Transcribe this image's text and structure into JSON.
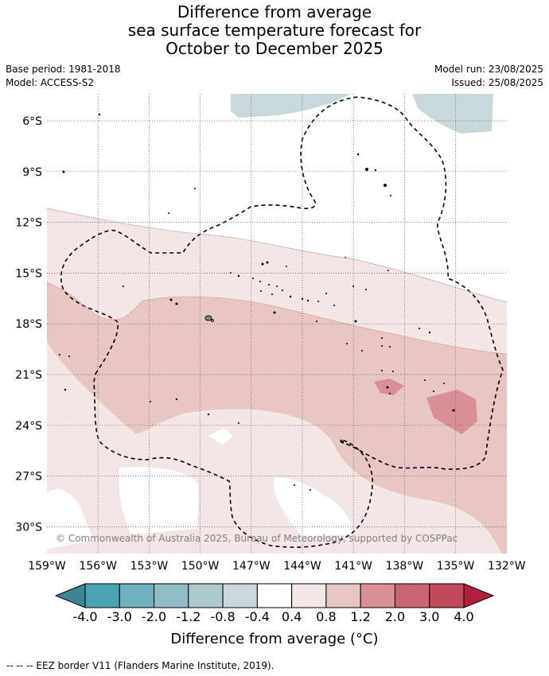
{
  "title": {
    "line1": "Difference from average",
    "line2": "sea surface temperature forecast for",
    "line3": "October to December 2025"
  },
  "meta": {
    "base_period": "Base period: 1981-2018",
    "model": "Model: ACCESS-S2",
    "model_run": "Model run: 23/08/2025",
    "issued": "Issued: 25/08/2025"
  },
  "copyright": "© Commonwealth of Australia 2025, Bureau of Meteorology, supported by COSPPac",
  "lat_ticks": [
    "6°S",
    "9°S",
    "12°S",
    "15°S",
    "18°S",
    "21°S",
    "24°S",
    "27°S",
    "30°S"
  ],
  "lon_ticks": [
    "159°W",
    "156°W",
    "153°W",
    "150°W",
    "147°W",
    "144°W",
    "141°W",
    "138°W",
    "135°W",
    "132°W"
  ],
  "colorbar": {
    "title": "Difference from average (°C)",
    "tick_labels": [
      "-4.0",
      "-3.0",
      "-2.0",
      "-1.2",
      "-0.8",
      "-0.4",
      "0.4",
      "0.8",
      "1.2",
      "2.0",
      "3.0",
      "4.0"
    ],
    "colors": [
      "#3c8791",
      "#4aa4b3",
      "#70b1bf",
      "#8fbcc7",
      "#acc9cd",
      "#c9d8da",
      "#ffffff",
      "#f5e6e6",
      "#e8c6c3",
      "#d88f96",
      "#cc6572",
      "#c1475a",
      "#b41f3e"
    ]
  },
  "footer": "--  --  -- EEZ border V11 (Flanders Marine Institute, 2019)."
}
